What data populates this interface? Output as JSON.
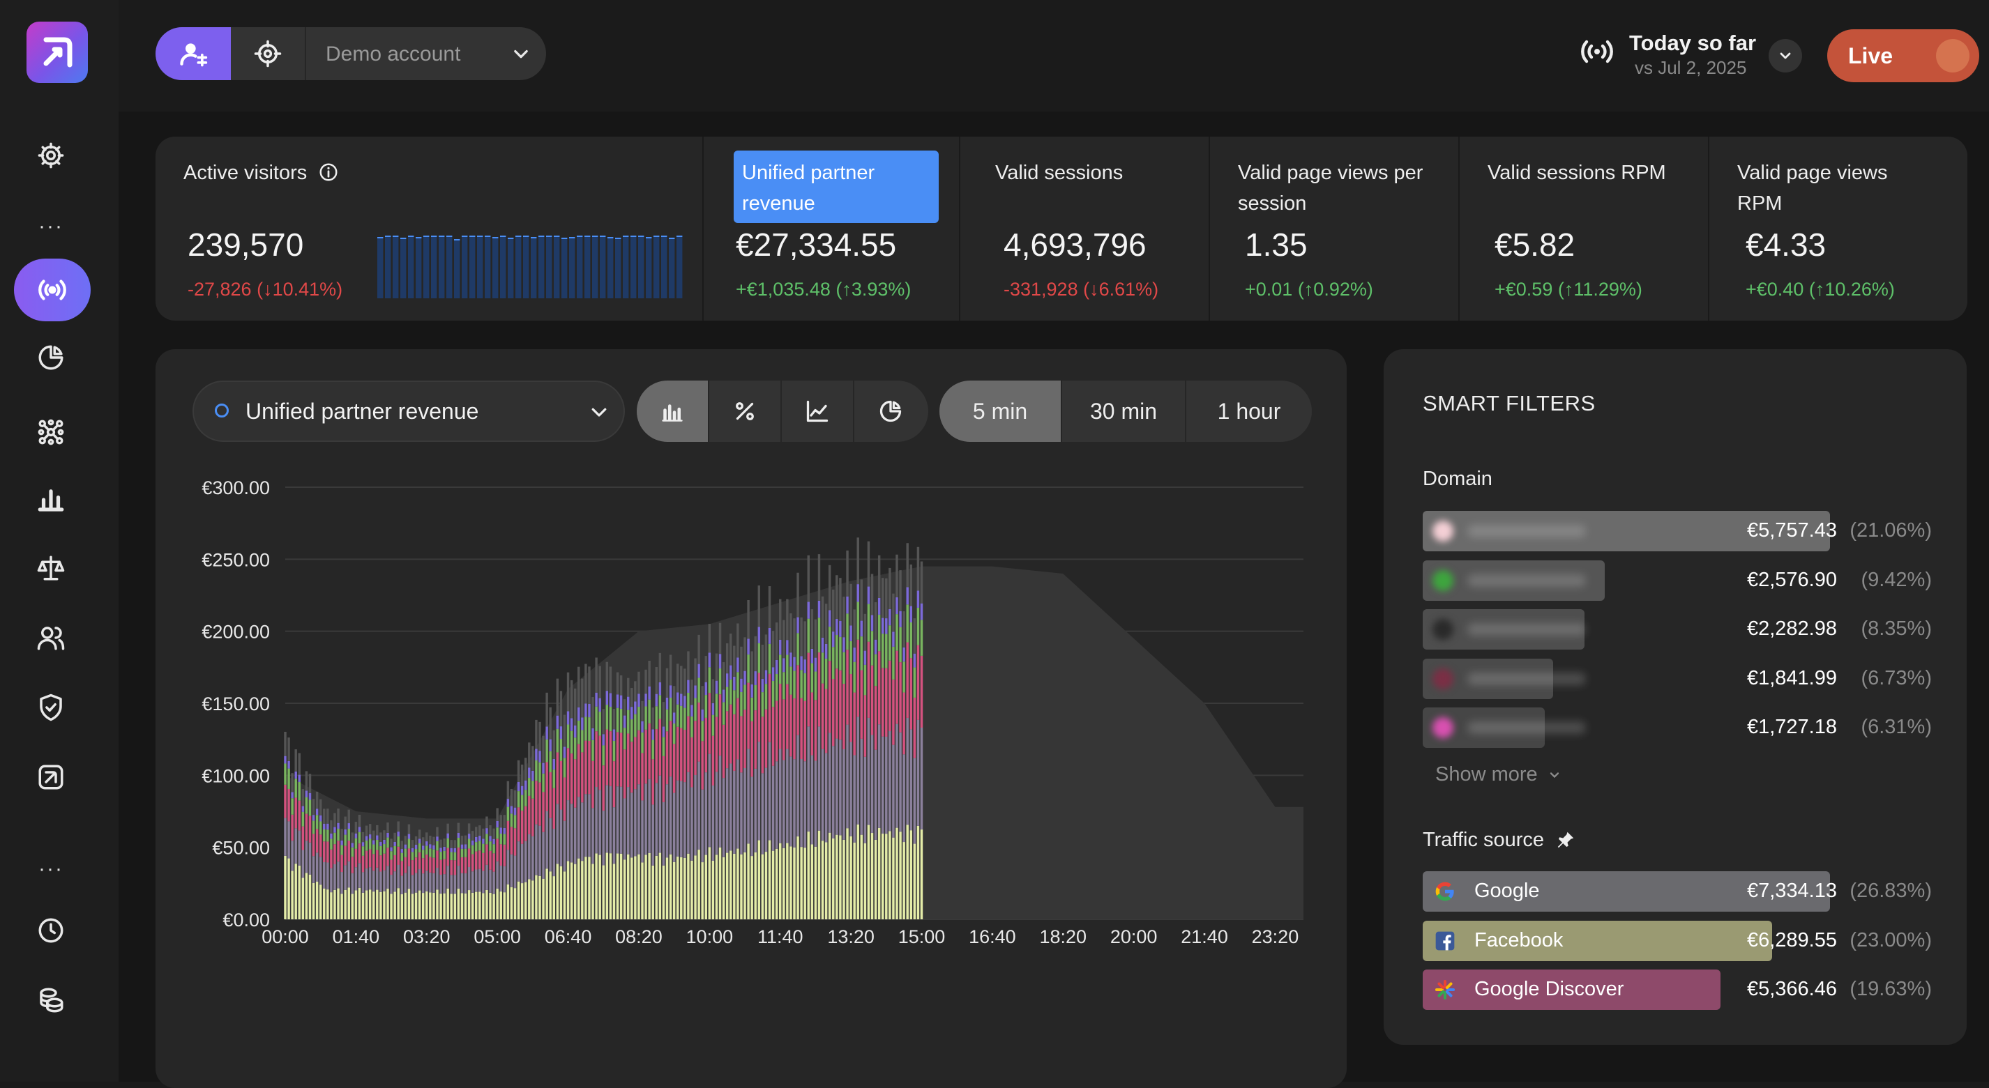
{
  "header": {
    "account_name": "Demo account",
    "today_title": "Today so far",
    "today_subtitle": "vs Jul 2, 2025",
    "live_label": "Live"
  },
  "kpis": [
    {
      "label": "Active visitors",
      "value": "239,570",
      "delta": "-27,826 (↓10.41%)",
      "trend": "down"
    },
    {
      "label": "Unified partner revenue",
      "value": "€27,334.55",
      "delta": "+€1,035.48 (↑3.93%)",
      "trend": "up",
      "selected": true
    },
    {
      "label": "Valid sessions",
      "value": "4,693,796",
      "delta": "-331,928 (↓6.61%)",
      "trend": "down"
    },
    {
      "label": "Valid page views per session",
      "value": "1.35",
      "delta": "+0.01 (↑0.92%)",
      "trend": "up"
    },
    {
      "label": "Valid sessions RPM",
      "value": "€5.82",
      "delta": "+€0.59 (↑11.29%)",
      "trend": "up"
    },
    {
      "label": "Valid page views RPM",
      "value": "€4.33",
      "delta": "+€0.40 (↑10.26%)",
      "trend": "up"
    }
  ],
  "chart_controls": {
    "metric": "Unified partner revenue",
    "chart_types": [
      "bar-chart-icon",
      "percent-icon",
      "line-chart-icon",
      "pie-chart-icon"
    ],
    "intervals": [
      "5 min",
      "30 min",
      "1 hour"
    ],
    "selected_interval": "5 min"
  },
  "chart_data": {
    "type": "bar",
    "stacked": true,
    "y_ticks": [
      "€300.00",
      "€250.00",
      "€200.00",
      "€150.00",
      "€100.00",
      "€50.00",
      "€0.00"
    ],
    "ylim": [
      0,
      300
    ],
    "x_ticks": [
      "00:00",
      "01:40",
      "03:20",
      "05:00",
      "06:40",
      "08:20",
      "10:00",
      "11:40",
      "13:20",
      "15:00",
      "16:40",
      "18:20",
      "20:00",
      "21:40",
      "23:20"
    ],
    "x": [
      "00:00",
      "01:00",
      "02:00",
      "03:00",
      "04:00",
      "05:00",
      "06:00",
      "07:00",
      "08:00",
      "09:00",
      "10:00",
      "11:00",
      "12:00",
      "13:00",
      "14:00",
      "15:00"
    ],
    "series": [
      {
        "color": "#e4eca8",
        "values": [
          42,
          20,
          20,
          19,
          19,
          19,
          30,
          42,
          44,
          42,
          45,
          48,
          52,
          58,
          60,
          60
        ]
      },
      {
        "color": "#8b809c",
        "values": [
          25,
          18,
          15,
          14,
          14,
          17,
          35,
          42,
          45,
          50,
          58,
          60,
          64,
          66,
          68,
          68
        ]
      },
      {
        "color": "#d4527f",
        "values": [
          22,
          14,
          12,
          11,
          11,
          14,
          30,
          36,
          36,
          36,
          38,
          42,
          44,
          48,
          48,
          48
        ]
      },
      {
        "color": "#79b45f",
        "values": [
          14,
          8,
          7,
          6,
          6,
          7,
          14,
          16,
          16,
          15,
          16,
          18,
          20,
          23,
          24,
          24
        ]
      },
      {
        "color": "#7c6ad8",
        "values": [
          5,
          4,
          3,
          3,
          3,
          4,
          8,
          9,
          9,
          8,
          9,
          10,
          10,
          11,
          11,
          11
        ]
      },
      {
        "color": "#555555",
        "values": [
          16,
          10,
          7,
          6,
          6,
          8,
          20,
          28,
          12,
          20,
          18,
          25,
          28,
          30,
          28,
          28
        ]
      }
    ],
    "previous_day": {
      "color": "#363636",
      "x": [
        "00:00",
        "01:40",
        "03:20",
        "05:00",
        "06:40",
        "08:20",
        "10:00",
        "11:40",
        "13:20",
        "15:00",
        "16:40",
        "18:20",
        "20:00",
        "21:40",
        "23:20"
      ],
      "values": [
        100,
        75,
        70,
        70,
        160,
        200,
        205,
        220,
        235,
        245,
        245,
        240,
        195,
        150,
        78
      ]
    }
  },
  "smart_filters": {
    "title": "SMART FILTERS",
    "domain_label": "Domain",
    "domains": [
      {
        "value": "€5,757.43",
        "pct": "(21.06%)",
        "share": 21.06,
        "color": "#6b6b6b",
        "dot": "#f4cfd5"
      },
      {
        "value": "€2,576.90",
        "pct": "(9.42%)",
        "share": 9.42,
        "color": "#555555",
        "dot": "#3ea53e"
      },
      {
        "value": "€2,282.98",
        "pct": "(8.35%)",
        "share": 8.35,
        "color": "#4e4e4e",
        "dot": "#2a2a2a"
      },
      {
        "value": "€1,841.99",
        "pct": "(6.73%)",
        "share": 6.73,
        "color": "#4a4a4a",
        "dot": "#7a2f45"
      },
      {
        "value": "€1,727.18",
        "pct": "(6.31%)",
        "share": 6.31,
        "color": "#464646",
        "dot": "#d850b0"
      }
    ],
    "show_more": "Show more",
    "traffic_label": "Traffic source",
    "traffic": [
      {
        "name": "Google",
        "value": "€7,334.13",
        "pct": "(26.83%)",
        "share": 26.83,
        "color": "#6a6a6e",
        "icon": "google-icon"
      },
      {
        "name": "Facebook",
        "value": "€6,289.55",
        "pct": "(23.00%)",
        "share": 23.0,
        "color": "#9a9a72",
        "icon": "facebook-icon"
      },
      {
        "name": "Google Discover",
        "value": "€5,366.46",
        "pct": "(19.63%)",
        "share": 19.63,
        "color": "#8e4a6a",
        "icon": "google-discover-icon"
      }
    ]
  }
}
